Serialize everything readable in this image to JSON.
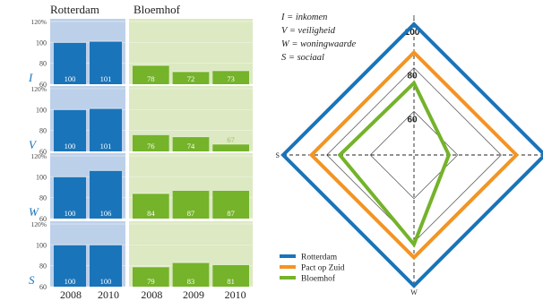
{
  "colors": {
    "rotterdam_bg": "#bdd0ea",
    "rotterdam_bar": "#1a74b9",
    "bloemhof_bg": "#dce9c2",
    "bloemhof_bar": "#74b32a",
    "pact": "#f39423",
    "label_blue": "#1a74b9",
    "text": "#222222"
  },
  "chart_data": [
    {
      "type": "bar",
      "layout": "small-multiples",
      "columns": [
        "Rotterdam",
        "Bloemhof"
      ],
      "x": [
        "2008",
        "2010",
        "2008",
        "2009",
        "2010"
      ],
      "y_ticks": [
        "120%",
        "100",
        "80",
        "60"
      ],
      "ylim": [
        60,
        120
      ],
      "panels": [
        {
          "label": "I",
          "rotterdam": [
            100,
            101
          ],
          "bloemhof": [
            78,
            72,
            73
          ]
        },
        {
          "label": "V",
          "rotterdam": [
            100,
            101
          ],
          "bloemhof": [
            76,
            74,
            67
          ]
        },
        {
          "label": "W",
          "rotterdam": [
            100,
            106
          ],
          "bloemhof": [
            84,
            87,
            87
          ]
        },
        {
          "label": "S",
          "rotterdam": [
            100,
            100
          ],
          "bloemhof": [
            79,
            83,
            81
          ]
        }
      ]
    },
    {
      "type": "radar",
      "axes": [
        "I",
        "V",
        "W",
        "S"
      ],
      "rings": [
        100,
        80,
        60
      ],
      "ring_labels": [
        "100",
        "80",
        "60"
      ],
      "rlim": [
        40,
        100
      ],
      "legend_definitions": [
        "I = inkomen",
        "V = veiligheid",
        "W = woningwaarde",
        "S = sociaal"
      ],
      "series": [
        {
          "name": "Rotterdam",
          "values": [
            100,
            100,
            100,
            100
          ]
        },
        {
          "name": "Pact op Zuid",
          "values": [
            87,
            87,
            87,
            87
          ]
        },
        {
          "name": "Bloemhof",
          "values": [
            73,
            56,
            81,
            74
          ]
        }
      ]
    }
  ]
}
